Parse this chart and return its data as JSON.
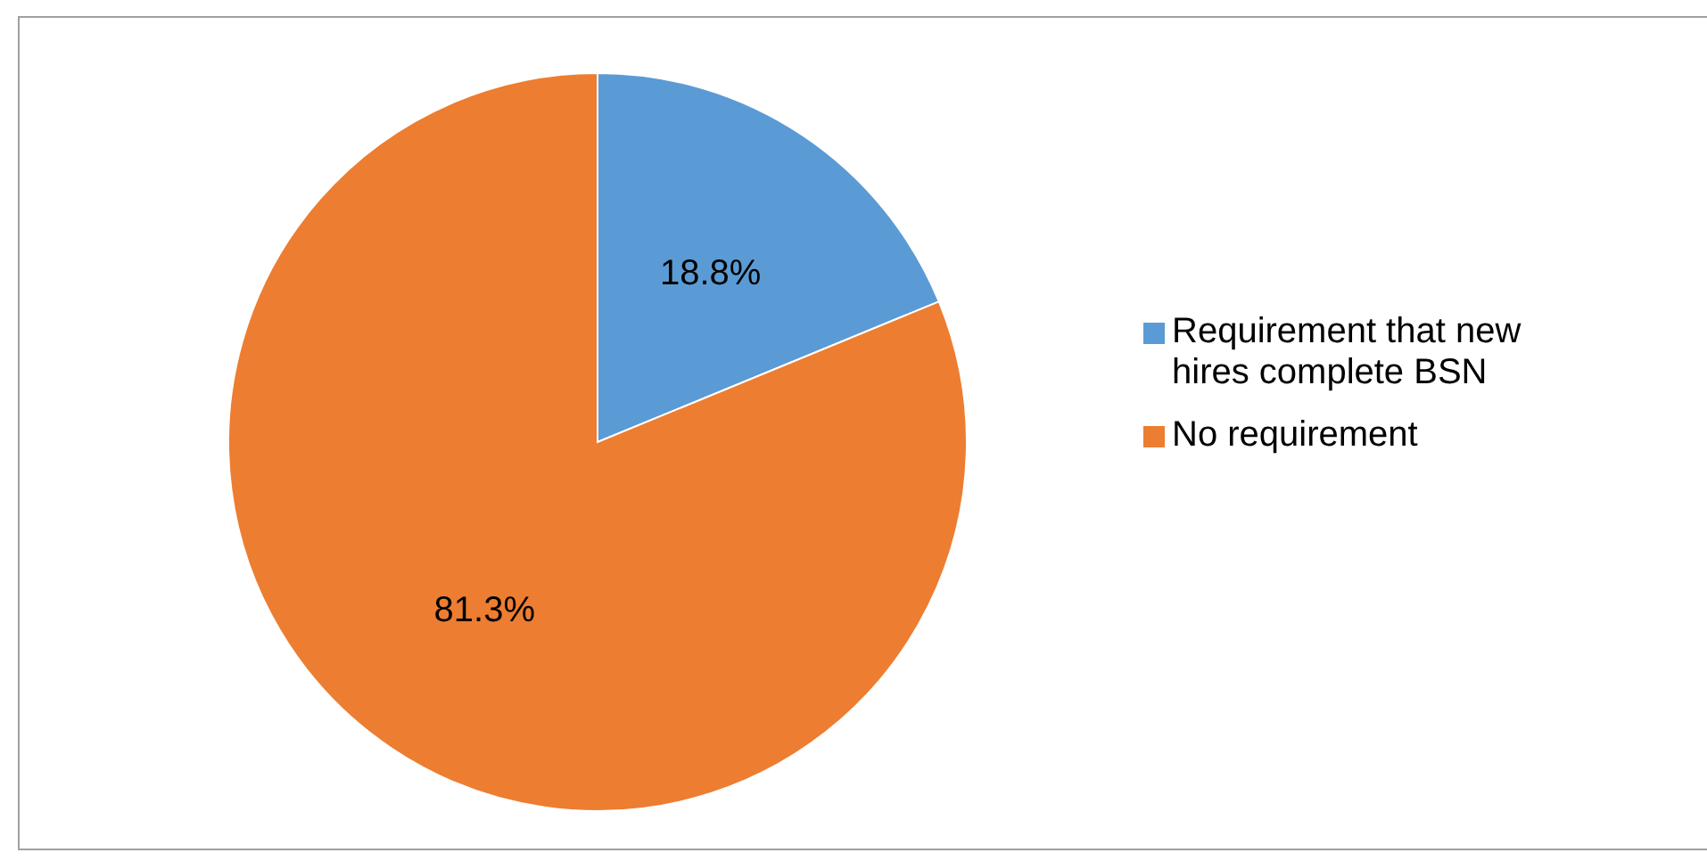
{
  "chart_data": {
    "type": "pie",
    "categories": [
      "Requirement that new hires complete BSN",
      "No requirement"
    ],
    "values": [
      18.8,
      81.3
    ],
    "colors": [
      "#5b9bd5",
      "#ed7d31"
    ],
    "value_labels": [
      "18.8%",
      "81.3%"
    ],
    "legend": "right"
  }
}
